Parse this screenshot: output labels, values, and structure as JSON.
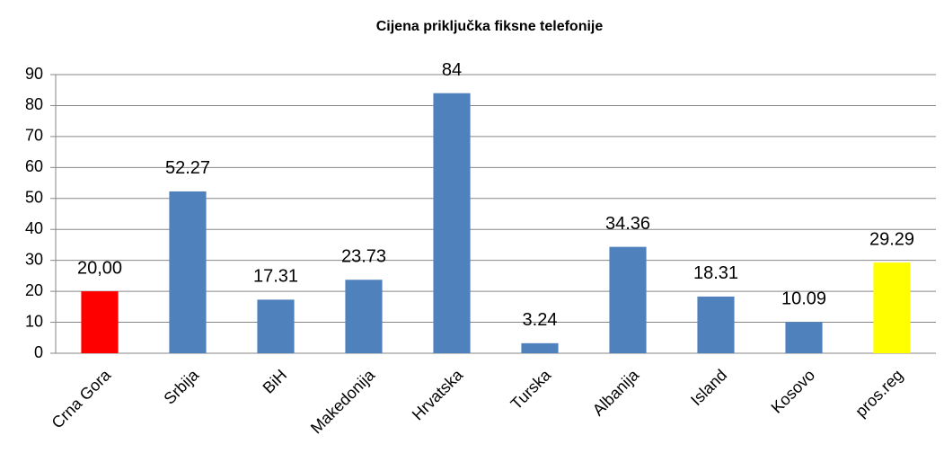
{
  "chart_data": {
    "type": "bar",
    "title": "Cijena priključka fiksne telefonije",
    "categories": [
      "Crna Gora",
      "Srbija",
      "BiH",
      "Makedonija",
      "Hrvatska",
      "Turska",
      "Albanija",
      "Island",
      "Kosovo",
      "pros.reg"
    ],
    "values": [
      20,
      52.27,
      17.31,
      23.73,
      84,
      3.24,
      34.36,
      18.31,
      10.09,
      29.29
    ],
    "value_labels": [
      "20,00",
      "52.27",
      "17.31",
      "23.73",
      "84",
      "3.24",
      "34.36",
      "18.31",
      "10.09",
      "29.29"
    ],
    "colors": [
      "#ff0000",
      "#4f81bd",
      "#4f81bd",
      "#4f81bd",
      "#4f81bd",
      "#4f81bd",
      "#4f81bd",
      "#4f81bd",
      "#4f81bd",
      "#ffff00"
    ],
    "ylim": [
      0,
      90
    ],
    "yticks": [
      0,
      10,
      20,
      30,
      40,
      50,
      60,
      70,
      80,
      90
    ],
    "grid": true
  }
}
